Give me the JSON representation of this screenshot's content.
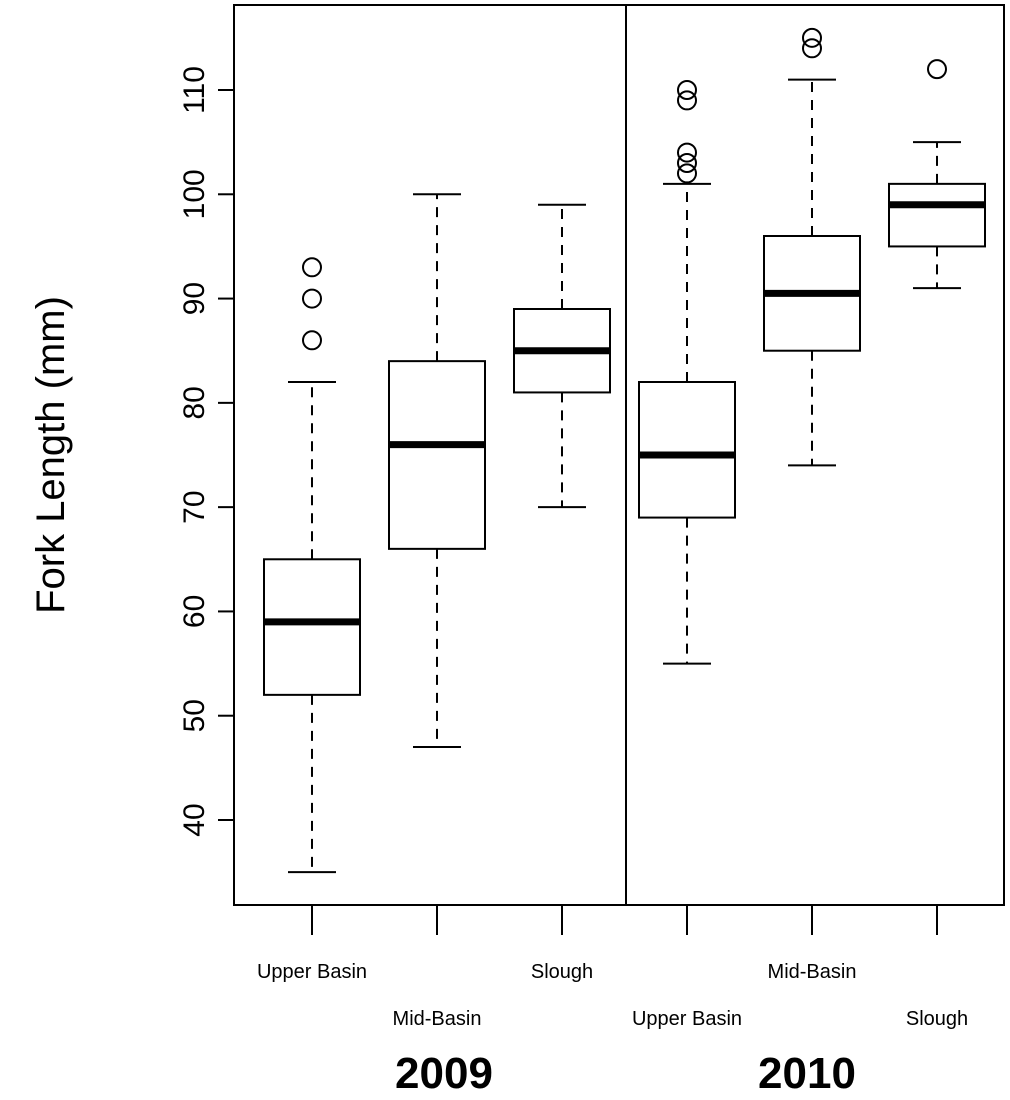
{
  "chart_data": {
    "type": "boxplot",
    "title": "",
    "xlabel": "",
    "ylabel": "Fork Length (mm)",
    "ylim": [
      30,
      117
    ],
    "yticks": [
      40,
      50,
      60,
      70,
      80,
      90,
      100,
      110
    ],
    "grid": false,
    "groups": [
      {
        "label": "2009",
        "boxes": [
          {
            "name": "Upper Basin",
            "min": 35,
            "q1": 52,
            "median": 59,
            "q3": 65,
            "max": 82,
            "outliers": [
              86,
              90,
              93
            ]
          },
          {
            "name": "Mid-Basin",
            "min": 47,
            "q1": 66,
            "median": 76,
            "q3": 84,
            "max": 100,
            "outliers": []
          },
          {
            "name": "Slough",
            "min": 70,
            "q1": 81,
            "median": 85,
            "q3": 89,
            "max": 99,
            "outliers": []
          }
        ]
      },
      {
        "label": "2010",
        "boxes": [
          {
            "name": "Upper Basin",
            "min": 55,
            "q1": 69,
            "median": 75,
            "q3": 82,
            "max": 101,
            "outliers": [
              102,
              103,
              104,
              109,
              110
            ]
          },
          {
            "name": "Mid-Basin",
            "min": 74,
            "q1": 85,
            "median": 90.5,
            "q3": 96,
            "max": 111,
            "outliers": [
              114,
              115
            ]
          },
          {
            "name": "Slough",
            "min": 91,
            "q1": 95,
            "median": 99,
            "q3": 101,
            "max": 105,
            "outliers": [
              112
            ]
          }
        ]
      }
    ]
  }
}
